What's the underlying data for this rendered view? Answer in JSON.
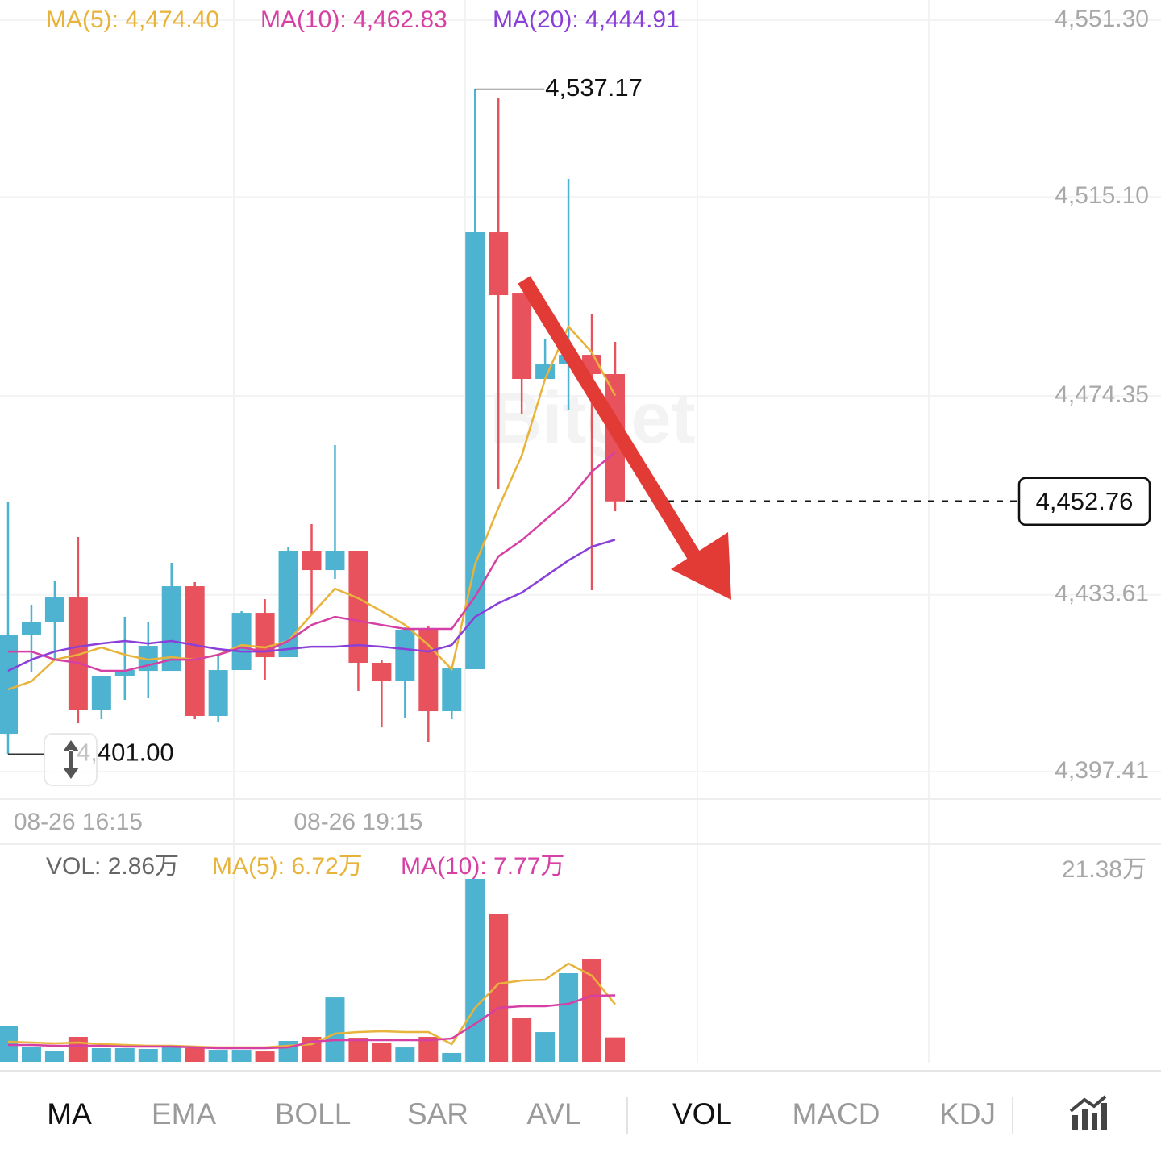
{
  "chart_data": {
    "type": "candlestick",
    "categories": [
      null,
      null,
      null,
      "08-26 16:15",
      null,
      null,
      null,
      null,
      null,
      null,
      null,
      null,
      null,
      null,
      null,
      "08-26 19:15",
      null,
      null,
      null,
      null,
      null,
      null,
      null,
      null,
      null,
      null,
      null
    ],
    "open": [
      4405.16,
      4425.47,
      4428.12,
      4433.07,
      4410.12,
      4417.05,
      4418.04,
      4418.04,
      4435.38,
      4408.8,
      4418.21,
      4429.93,
      4420.85,
      4442.65,
      4438.68,
      4442.65,
      4419.7,
      4415.9,
      4426.8,
      4409.79,
      4418.38,
      4507.87,
      4495.32,
      4477.82,
      4480.79,
      4482.77,
      4478.81
    ],
    "high": [
      4452.72,
      4431.58,
      4436.54,
      4445.45,
      4417.05,
      4429.11,
      4428.12,
      4440.17,
      4436.21,
      4421.02,
      4430.26,
      4432.74,
      4443.31,
      4448.1,
      4464.28,
      4442.65,
      4420.36,
      4426.96,
      4427.13,
      4418.54,
      4537.17,
      4535.28,
      4495.32,
      4486.08,
      4518.77,
      4491.03,
      4485.41
    ],
    "low": [
      4401.0,
      4417.88,
      4420.36,
      4407.31,
      4408.14,
      4412.1,
      4412.43,
      4418.04,
      4408.14,
      4407.64,
      4418.21,
      4416.23,
      4420.85,
      4429.6,
      4436.87,
      4413.92,
      4406.48,
      4408.47,
      4403.51,
      4408.14,
      4418.38,
      4455.36,
      4470.55,
      4477.82,
      4471.54,
      4434.56,
      4450.74
    ],
    "close": [
      4425.47,
      4428.12,
      4433.07,
      4410.12,
      4417.05,
      4418.21,
      4423.16,
      4435.38,
      4408.8,
      4418.21,
      4429.93,
      4420.85,
      4442.65,
      4438.68,
      4442.65,
      4419.7,
      4415.9,
      4426.47,
      4409.79,
      4418.54,
      4507.87,
      4494.99,
      4477.82,
      4480.79,
      4482.77,
      4478.81,
      4452.76
    ],
    "up_color": "#4db3d0",
    "down_color": "#e8525d",
    "ylim": [
      4397.41,
      4551.3
    ],
    "yticks": [
      {
        "value": 4551.3,
        "label": "4,551.30"
      },
      {
        "value": 4515.1,
        "label": "4,515.10"
      },
      {
        "value": 4474.35,
        "label": "4,474.35"
      },
      {
        "value": 4433.61,
        "label": "4,433.61"
      },
      {
        "value": 4397.41,
        "label": "4,397.41"
      }
    ],
    "grid": true,
    "series": [
      {
        "label": "MA(5): 4,474.40",
        "color": "#e8b33a",
        "values": [
          4414.24,
          4415.89,
          4420.35,
          4421.34,
          4422.83,
          4421.34,
          4420.35,
          4420.85,
          4420.35,
          4421.34,
          4423.32,
          4422.83,
          4424.15,
          4429.6,
          4434.88,
          4432.9,
          4430.26,
          4427.45,
          4423.32,
          4418.37,
          4439.84,
          4451.4,
          4462.13,
          4477.82,
          4488.55,
          4483.27,
          4474.4
        ]
      },
      {
        "label": "MA(10): 4,462.83",
        "color": "#d63fa3",
        "values": [
          4422.0,
          4422.0,
          4420.35,
          4419.69,
          4418.04,
          4418.04,
          4419.2,
          4420.35,
          4420.35,
          4421.34,
          4422.83,
          4422.0,
          4424.15,
          4427.45,
          4429.1,
          4428.28,
          4427.45,
          4426.63,
          4426.63,
          4426.63,
          4433.23,
          4441.49,
          4444.79,
          4448.92,
          4453.05,
          4458.83,
          4462.83
        ]
      },
      {
        "label": "MA(20): 4,444.91",
        "color": "#8a3fd8",
        "values": [
          4418.04,
          4420.35,
          4422.0,
          4422.99,
          4423.65,
          4424.15,
          4423.65,
          4424.15,
          4423.32,
          4422.5,
          4422.0,
          4422.0,
          4422.5,
          4422.99,
          4422.99,
          4423.32,
          4422.99,
          4422.5,
          4422.0,
          4423.32,
          4429.1,
          4431.91,
          4434.06,
          4437.36,
          4440.66,
          4443.47,
          4444.91
        ]
      }
    ],
    "max_label": "4,537.17",
    "min_label": "4,401.00",
    "last_label": "4,452.76",
    "watermark": "Bitget",
    "volume": {
      "label": "VOL: 2.86万",
      "values": [
        4.24,
        1.79,
        1.32,
        2.92,
        1.6,
        1.6,
        1.51,
        1.79,
        1.6,
        1.41,
        1.41,
        1.22,
        2.45,
        2.92,
        7.53,
        2.82,
        2.17,
        1.69,
        2.92,
        1.04,
        21.38,
        17.33,
        5.18,
        3.48,
        10.36,
        11.96,
        2.86
      ],
      "ylim": [
        0,
        21.38
      ],
      "yticks": [
        {
          "value": 21.38,
          "label": "21.38万"
        }
      ],
      "series": [
        {
          "label": "MA(5): 6.72万",
          "color": "#e8b33a",
          "values": [
            2.35,
            2.26,
            2.17,
            2.26,
            2.07,
            1.98,
            1.88,
            1.88,
            1.79,
            1.69,
            1.69,
            1.69,
            1.88,
            2.07,
            3.3,
            3.48,
            3.58,
            3.48,
            3.48,
            2.07,
            6.31,
            9.13,
            9.51,
            9.6,
            11.49,
            10.08,
            6.72
          ]
        },
        {
          "label": "MA(10): 7.77万",
          "color": "#d63fa3",
          "values": [
            1.98,
            1.98,
            1.88,
            1.88,
            1.88,
            1.79,
            1.79,
            1.79,
            1.69,
            1.6,
            1.6,
            1.6,
            1.69,
            2.35,
            2.54,
            2.54,
            2.54,
            2.54,
            2.54,
            2.73,
            4.43,
            6.31,
            6.5,
            6.5,
            6.78,
            7.72,
            7.77
          ]
        }
      ]
    }
  },
  "tabs": {
    "main": [
      "MA",
      "EMA",
      "BOLL",
      "SAR",
      "AVL"
    ],
    "sub": [
      "VOL",
      "MACD",
      "KDJ"
    ],
    "selected": [
      "MA",
      "VOL"
    ]
  }
}
